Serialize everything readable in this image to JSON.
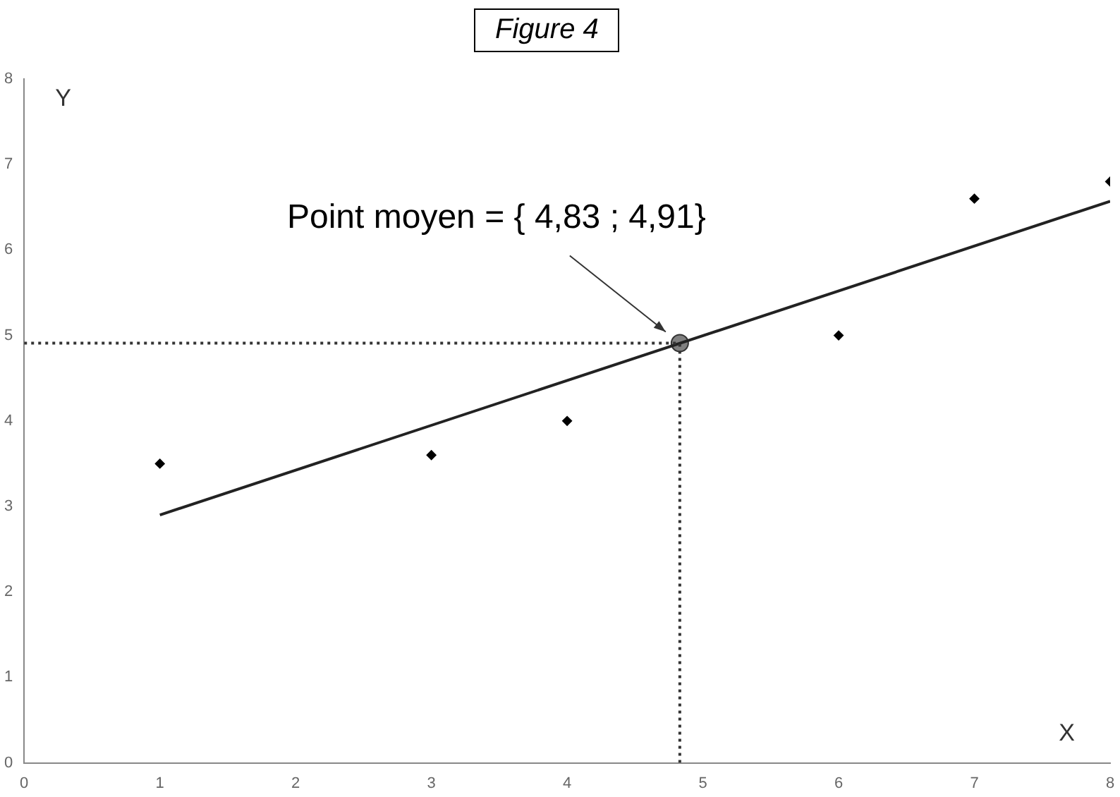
{
  "chart_data": {
    "type": "scatter",
    "title": "Figure 4",
    "xlabel": "X",
    "ylabel": "Y",
    "xlim": [
      0,
      8
    ],
    "ylim": [
      0,
      8
    ],
    "xticks": [
      0,
      1,
      2,
      3,
      4,
      5,
      6,
      7,
      8
    ],
    "yticks": [
      0,
      1,
      2,
      3,
      4,
      5,
      6,
      7,
      8
    ],
    "grid": false,
    "legend": false,
    "annotations": [
      "Point moyen = { 4,83 ; 4,91}"
    ],
    "series": [
      {
        "type": "line",
        "x": [
          0,
          4.83
        ],
        "values": [
          4.91,
          4.91
        ],
        "color": "#333333",
        "line_style": "dotted",
        "marker": "none"
      },
      {
        "type": "line",
        "x": [
          4.83,
          4.83
        ],
        "values": [
          0,
          4.91
        ],
        "color": "#333333",
        "line_style": "dotted",
        "marker": "none"
      },
      {
        "type": "line",
        "x": [
          1,
          8
        ],
        "values": [
          2.9,
          6.57
        ],
        "color": "#222222",
        "line_style": "solid",
        "marker": "none"
      },
      {
        "type": "scatter",
        "x": [
          1,
          3,
          4,
          6,
          7,
          8
        ],
        "values": [
          3.5,
          3.6,
          4.0,
          5.0,
          6.6,
          6.8
        ],
        "color": "#000000",
        "marker": "diamond"
      },
      {
        "type": "scatter",
        "x": [
          4.83
        ],
        "values": [
          4.91
        ],
        "color": "#808080",
        "marker": "circle"
      }
    ]
  }
}
